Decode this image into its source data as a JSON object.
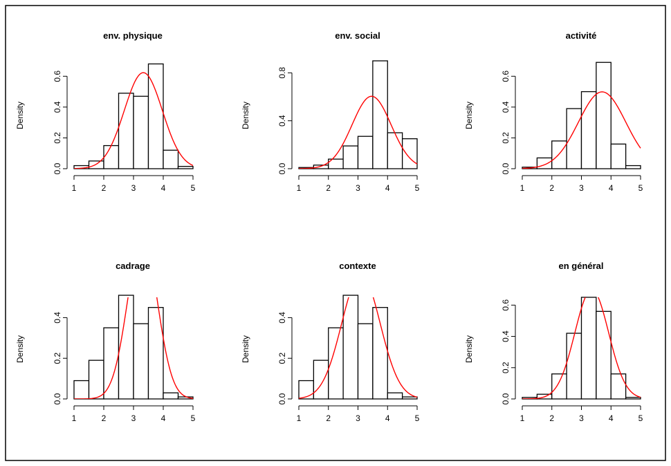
{
  "figure": {
    "border_color": "#000000",
    "bar_stroke": "#000000",
    "curve_color": "#ff0000"
  },
  "chart_data": [
    {
      "type": "bar",
      "title": "env. physique",
      "ylabel": "Density",
      "xlim": [
        1,
        5
      ],
      "ylim": [
        0,
        0.7
      ],
      "xticks": [
        1,
        2,
        3,
        4,
        5
      ],
      "yticks": [
        "0.0",
        "0.2",
        "0.4",
        "0.6"
      ],
      "bin_edges": [
        1,
        1.5,
        2,
        2.5,
        3,
        3.5,
        4,
        4.5,
        5
      ],
      "values": [
        0.02,
        0.05,
        0.15,
        0.49,
        0.47,
        0.68,
        0.12,
        0.015
      ],
      "normal_curve": {
        "mean": 3.33,
        "sd": 0.64
      }
    },
    {
      "type": "bar",
      "title": "env. social",
      "ylabel": "Density",
      "xlim": [
        1,
        5
      ],
      "ylim": [
        0,
        0.9
      ],
      "xticks": [
        1,
        2,
        3,
        4,
        5
      ],
      "yticks": [
        "0.0",
        "0.4",
        "0.8"
      ],
      "bin_edges": [
        1,
        1.5,
        2,
        2.5,
        3,
        3.5,
        4,
        4.5,
        5
      ],
      "values": [
        0.01,
        0.03,
        0.08,
        0.19,
        0.27,
        0.9,
        0.3,
        0.25
      ],
      "normal_curve": {
        "mean": 3.46,
        "sd": 0.66
      }
    },
    {
      "type": "bar",
      "title": "activité",
      "ylabel": "Density",
      "xlim": [
        1,
        5
      ],
      "ylim": [
        0,
        0.7
      ],
      "xticks": [
        1,
        2,
        3,
        4,
        5
      ],
      "yticks": [
        "0.0",
        "0.2",
        "0.4",
        "0.6"
      ],
      "bin_edges": [
        1,
        1.5,
        2,
        2.5,
        3,
        3.5,
        4,
        4.5,
        5
      ],
      "values": [
        0.01,
        0.07,
        0.18,
        0.39,
        0.5,
        0.69,
        0.16,
        0.02
      ],
      "normal_curve": {
        "mean": 3.7,
        "sd": 0.8
      }
    },
    {
      "type": "bar",
      "title": "cadrage",
      "ylabel": "Density",
      "xlim": [
        1,
        5
      ],
      "ylim": [
        0,
        0.5
      ],
      "xticks": [
        1,
        2,
        3,
        4,
        5
      ],
      "yticks": [
        "0.0",
        "0.2",
        "0.4"
      ],
      "bin_edges": [
        1,
        1.5,
        2,
        2.5,
        3,
        3.5,
        4,
        4.5,
        5
      ],
      "values": [
        0.09,
        0.19,
        0.35,
        0.51,
        0.37,
        0.45,
        0.03,
        0.01
      ],
      "normal_curve": {
        "mean": 3.3,
        "sd": 0.5
      }
    },
    {
      "type": "bar",
      "title": "contexte",
      "ylabel": "Density",
      "xlim": [
        1,
        5
      ],
      "ylim": [
        0,
        0.5
      ],
      "xticks": [
        1,
        2,
        3,
        4,
        5
      ],
      "yticks": [
        "0.0",
        "0.2",
        "0.4"
      ],
      "bin_edges": [
        1,
        1.5,
        2,
        2.5,
        3,
        3.5,
        4,
        4.5,
        5
      ],
      "values": [
        0.09,
        0.19,
        0.35,
        0.51,
        0.37,
        0.45,
        0.03,
        0.01
      ],
      "normal_curve": {
        "mean": 3.1,
        "sd": 0.65
      }
    },
    {
      "type": "bar",
      "title": "en général",
      "ylabel": "Density",
      "xlim": [
        1,
        5
      ],
      "ylim": [
        0,
        0.65
      ],
      "xticks": [
        1,
        2,
        3,
        4,
        5
      ],
      "yticks": [
        "0.0",
        "0.2",
        "0.4",
        "0.6"
      ],
      "bin_edges": [
        1,
        1.5,
        2,
        2.5,
        3,
        3.5,
        4,
        4.5,
        5
      ],
      "values": [
        0.01,
        0.03,
        0.16,
        0.42,
        0.65,
        0.56,
        0.16,
        0.01
      ],
      "normal_curve": {
        "mean": 3.35,
        "sd": 0.57
      }
    }
  ]
}
